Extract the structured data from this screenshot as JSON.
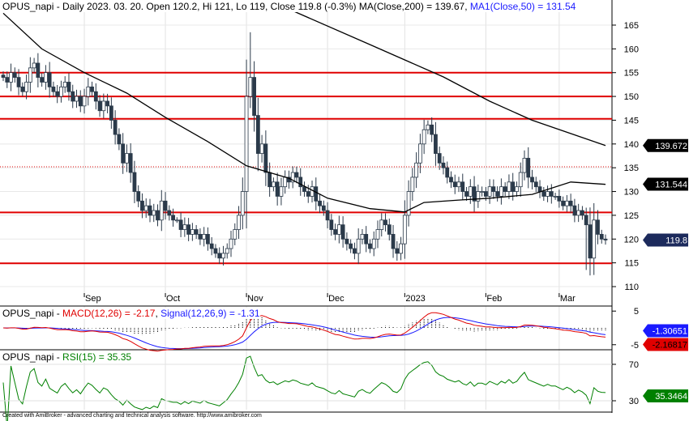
{
  "header": {
    "symbol": "OPUS_napi",
    "main_text": "OPUS_napi - Daily 2023. 03. 20. Open 120.2, Hi 121, Lo 119, Close 119.8 (-0.3%) MA(Close,200) = 139.67, ",
    "ma50_text": "MA1(Close,50) = 131.54"
  },
  "macd_header": {
    "prefix": "OPUS_napi - ",
    "macd": "MACD(12,26) = -2.17",
    "sep": ", ",
    "signal": "Signal(12,26,9) = -1.31"
  },
  "rsi_header": {
    "prefix": "OPUS_napi - ",
    "rsi": "RSI(15) = 35.35"
  },
  "footer": "Created with AmiBroker - advanced charting and technical analysis software. http://www.amibroker.com",
  "colors": {
    "up": "#ffffff",
    "down": "#2b3a4a",
    "ma": "#000000",
    "hline": "#e00000",
    "macd": "#e00000",
    "signal": "#1a1aff",
    "rsi": "#008000"
  },
  "chart_data": {
    "type": "candlestick",
    "title": "OPUS_napi - Daily",
    "ylim": [
      108,
      168
    ],
    "yticks": [
      165,
      160,
      155,
      150,
      145,
      140,
      135,
      130,
      125,
      120,
      115,
      110
    ],
    "months": [
      {
        "label": "Sep",
        "index": 21
      },
      {
        "label": "Oct",
        "index": 42
      },
      {
        "label": "Nov",
        "index": 63
      },
      {
        "label": "Dec",
        "index": 84
      },
      {
        "label": "2023",
        "index": 104
      },
      {
        "label": "Feb",
        "index": 125
      },
      {
        "label": "Mar",
        "index": 144
      }
    ],
    "closes": [
      154,
      153,
      155,
      154,
      152,
      151,
      153,
      156,
      157,
      154,
      153,
      155,
      152,
      151,
      150,
      152,
      153,
      151,
      149,
      150,
      148,
      150,
      152,
      151,
      149,
      147,
      149,
      148,
      145,
      142,
      140,
      136,
      138,
      134,
      130,
      128,
      126,
      127,
      125,
      126,
      124,
      128,
      126,
      125,
      124,
      124,
      122,
      123,
      121,
      122,
      121,
      120,
      121,
      119,
      118,
      117,
      116,
      117,
      118,
      120,
      122,
      125,
      130,
      150,
      154,
      146,
      138,
      140,
      134,
      131,
      132,
      129,
      131,
      133,
      132,
      134,
      133,
      131,
      130,
      129,
      131,
      128,
      127,
      126,
      124,
      122,
      121,
      123,
      120,
      119,
      118,
      117,
      120,
      121,
      119,
      118,
      120,
      122,
      124,
      123,
      121,
      118,
      117,
      119,
      125,
      130,
      133,
      136,
      140,
      143,
      144,
      142,
      138,
      136,
      135,
      133,
      132,
      131,
      132,
      130,
      129,
      131,
      128,
      130,
      130,
      129,
      131,
      130,
      129,
      131,
      130,
      132,
      130,
      131,
      134,
      137,
      133,
      132,
      131,
      130,
      129,
      130,
      129,
      129,
      128,
      127,
      128,
      127,
      125,
      126,
      125,
      123,
      116,
      124,
      121,
      120,
      119.8
    ],
    "ma200": [
      [
        75,
        168
      ],
      [
        95,
        160.9
      ],
      [
        114,
        154.1
      ],
      [
        126,
        149
      ],
      [
        137,
        145
      ],
      [
        156,
        139.67
      ]
    ],
    "ma50": [
      [
        0,
        167.5
      ],
      [
        10,
        160
      ],
      [
        21,
        155
      ],
      [
        32,
        150.7
      ],
      [
        42,
        145.6
      ],
      [
        53,
        140.5
      ],
      [
        63,
        135.4
      ],
      [
        74,
        132.8
      ],
      [
        84,
        128.6
      ],
      [
        95,
        126.4
      ],
      [
        104,
        125.7
      ],
      [
        109,
        127.7
      ],
      [
        118,
        128.2
      ],
      [
        126,
        128.6
      ],
      [
        137,
        129.4
      ],
      [
        147,
        132
      ],
      [
        156,
        131.5
      ]
    ],
    "hlines": [
      155,
      150,
      145.3,
      125.6,
      114.9
    ],
    "dotted_hline": 135.2,
    "last_values": {
      "ma200": "139.672",
      "ma50": "131.544",
      "close": "119.8"
    },
    "macd": {
      "ylim": [
        -6.5,
        6.5
      ],
      "yticks": [
        "5",
        "-5"
      ],
      "last_macd": "-2.16817",
      "last_signal": "-1.30651"
    },
    "rsi": {
      "ylim": [
        20,
        85
      ],
      "yticks": [
        "70",
        "30"
      ],
      "last": "35.3464"
    }
  }
}
